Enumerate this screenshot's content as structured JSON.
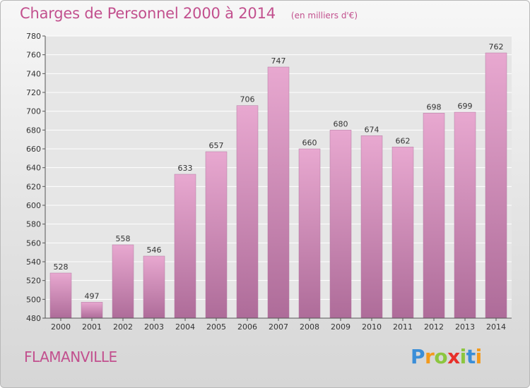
{
  "title": "Charges de Personnel 2000 à 2014",
  "subtitle": "(en milliers d'€)",
  "footer": {
    "city": "FLAMANVILLE",
    "logo_text": "Proxiti"
  },
  "colors": {
    "title": "#c2508e",
    "bar_top": "#e8a8d0",
    "bar_bottom": "#ae6c99",
    "grid": "#ffffff",
    "logo_letters": [
      "#3a8ed8",
      "#f39a1c",
      "#8cc63f",
      "#e8302a",
      "#8cc63f",
      "#3a8ed8",
      "#f39a1c"
    ]
  },
  "chart_data": {
    "type": "bar",
    "title": "Charges de Personnel 2000 à 2014",
    "subtitle": "(en milliers d'€)",
    "xlabel": "",
    "ylabel": "",
    "categories": [
      "2000",
      "2001",
      "2002",
      "2003",
      "2004",
      "2005",
      "2006",
      "2007",
      "2008",
      "2009",
      "2010",
      "2011",
      "2012",
      "2013",
      "2014"
    ],
    "values": [
      528,
      497,
      558,
      546,
      633,
      657,
      706,
      747,
      660,
      680,
      674,
      662,
      698,
      699,
      762
    ],
    "ylim": [
      480,
      780
    ],
    "yticks": [
      480,
      500,
      520,
      540,
      560,
      580,
      600,
      620,
      640,
      660,
      680,
      700,
      720,
      740,
      760,
      780
    ],
    "grid": true,
    "data_labels": true
  }
}
